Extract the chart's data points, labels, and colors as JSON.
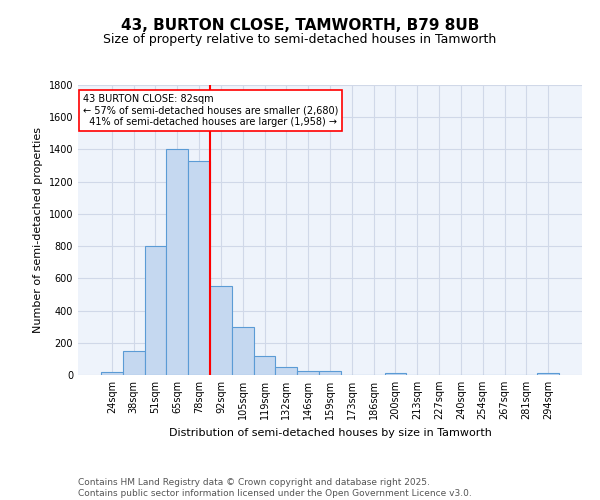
{
  "title1": "43, BURTON CLOSE, TAMWORTH, B79 8UB",
  "title2": "Size of property relative to semi-detached houses in Tamworth",
  "xlabel": "Distribution of semi-detached houses by size in Tamworth",
  "ylabel": "Number of semi-detached properties",
  "categories": [
    "24sqm",
    "38sqm",
    "51sqm",
    "65sqm",
    "78sqm",
    "92sqm",
    "105sqm",
    "119sqm",
    "132sqm",
    "146sqm",
    "159sqm",
    "173sqm",
    "186sqm",
    "200sqm",
    "213sqm",
    "227sqm",
    "240sqm",
    "254sqm",
    "267sqm",
    "281sqm",
    "294sqm"
  ],
  "values": [
    20,
    148,
    800,
    1400,
    1330,
    550,
    295,
    120,
    50,
    25,
    25,
    0,
    0,
    15,
    0,
    0,
    0,
    0,
    0,
    0,
    15
  ],
  "bar_color": "#c5d8f0",
  "bar_edge_color": "#5b9bd5",
  "grid_color": "#d0d8e8",
  "background_color": "#eef3fb",
  "ref_line_color": "red",
  "annotation_text": "43 BURTON CLOSE: 82sqm\n← 57% of semi-detached houses are smaller (2,680)\n  41% of semi-detached houses are larger (1,958) →",
  "annotation_box_color": "white",
  "annotation_box_edge": "red",
  "ylim": [
    0,
    1800
  ],
  "yticks": [
    0,
    200,
    400,
    600,
    800,
    1000,
    1200,
    1400,
    1600,
    1800
  ],
  "footer": "Contains HM Land Registry data © Crown copyright and database right 2025.\nContains public sector information licensed under the Open Government Licence v3.0.",
  "title_fontsize": 11,
  "subtitle_fontsize": 9,
  "label_fontsize": 8,
  "tick_fontsize": 7,
  "footer_fontsize": 6.5,
  "annot_fontsize": 7
}
